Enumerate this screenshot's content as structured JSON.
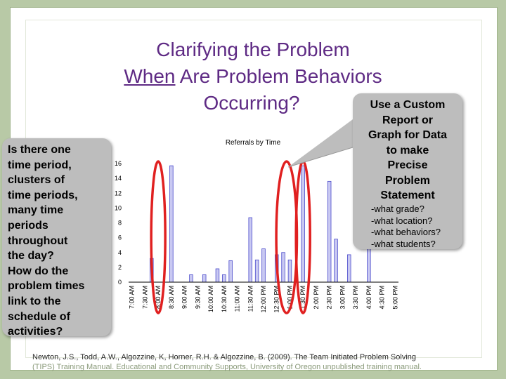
{
  "slide": {
    "title_line1": "Clarifying the Problem",
    "title_line2_underlined": "When",
    "title_line2_rest": " Are Problem Behaviors",
    "title_line3": "Occurring?",
    "left_box_lines": [
      "Is there one",
      "time period,",
      "clusters of",
      "time periods,",
      "many time",
      "periods",
      "throughout",
      "the day?",
      "How do the",
      "problem times",
      "link to the",
      "schedule of",
      "activities?"
    ],
    "callout_lines": [
      "Use a Custom",
      "Report or",
      "Graph for Data",
      "to make",
      "Precise",
      "Problem",
      "Statement"
    ],
    "callout_questions": [
      "-what grade?",
      "-what location?",
      "-what behaviors?",
      "-what students?"
    ],
    "citation_line1": "Newton, J.S., Todd, A.W., Algozzine, K, Horner, R.H. & Algozzine, B. (2009). The Team Initiated Problem Solving",
    "citation_line2": "(TIPS) Training Manual. Educational and Community Supports, University of Oregon unpublished training manual."
  },
  "colors": {
    "title": "#5e2a84",
    "bar_fill": "#c9c9f2",
    "bar_stroke": "#4a4acb",
    "highlight": "#e02020",
    "box_fill": "#bdbdbd"
  },
  "chart_data": {
    "type": "bar",
    "title": "Referrals by Time",
    "xlabel": "",
    "ylabel": "",
    "ylim": [
      0,
      16
    ],
    "yticks": [
      "0",
      "2",
      "4",
      "6",
      "8",
      "10",
      "12",
      "14",
      "16"
    ],
    "categories": [
      "7:00 AM",
      "7:15 AM",
      "7:30 AM",
      "7:45 AM",
      "8:00 AM",
      "8:15 AM",
      "8:30 AM",
      "8:45 AM",
      "9:00 AM",
      "9:15 AM",
      "9:30 AM",
      "9:45 AM",
      "10:00 AM",
      "10:15 AM",
      "10:30 AM",
      "10:45 AM",
      "11:00 AM",
      "11:15 AM",
      "11:30 AM",
      "11:45 AM",
      "12:00 PM",
      "12:15 PM",
      "12:30 PM",
      "12:45 PM",
      "1:00 PM",
      "1:15 PM",
      "1:30 PM",
      "1:45 PM",
      "2:00 PM",
      "2:15 PM",
      "2:30 PM",
      "2:45 PM",
      "3:00 PM",
      "3:15 PM",
      "3:30 PM",
      "3:45 PM",
      "4:00 PM",
      "4:15 PM",
      "4:30 PM",
      "4:45 PM",
      "5:00 PM"
    ],
    "tick_labels": [
      "7:00 AM",
      "7:30 AM",
      "8:00 AM",
      "8:30 AM",
      "9:00 AM",
      "9:30 AM",
      "10:00 AM",
      "10:30 AM",
      "11:00 AM",
      "11:30 AM",
      "12:00 PM",
      "12:30 PM",
      "1:00 PM",
      "1:30 PM",
      "2:00 PM",
      "2:30 PM",
      "3:00 PM",
      "3:30 PM",
      "4:00 PM",
      "4:30 PM",
      "5:00 PM"
    ],
    "values": [
      0,
      0,
      0,
      3.2,
      0,
      0,
      15.7,
      0,
      0,
      1,
      0,
      1,
      0,
      1.8,
      1,
      2.9,
      0,
      0,
      8.7,
      3,
      4.5,
      0,
      3.7,
      4,
      3,
      0,
      15.7,
      0,
      0,
      0,
      13.6,
      5.8,
      0,
      3.7,
      0,
      0,
      10.8,
      0,
      0,
      0,
      0
    ],
    "highlights": [
      {
        "from": "8:00 AM",
        "to": "8:00 AM"
      },
      {
        "from": "12:45 PM",
        "to": "1:00 PM"
      },
      {
        "from": "1:30 PM",
        "to": "1:30 PM"
      }
    ]
  }
}
